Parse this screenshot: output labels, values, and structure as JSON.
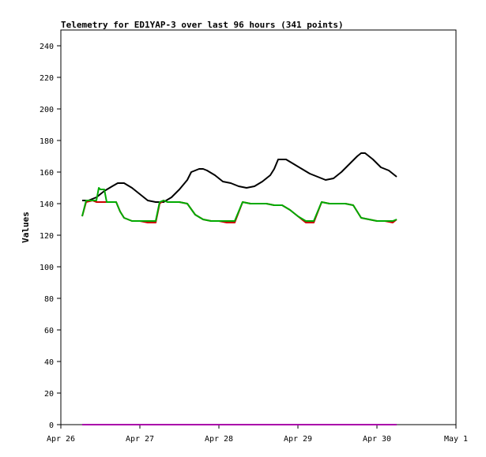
{
  "chart_data": {
    "type": "line",
    "title": "Telemetry for ED1YAP-3 over last 96 hours (341 points)",
    "xlabel": "",
    "ylabel": "Values",
    "ylim": [
      0,
      250
    ],
    "yticks": [
      0,
      20,
      40,
      60,
      80,
      100,
      120,
      140,
      160,
      180,
      200,
      220,
      240
    ],
    "xlim": [
      0,
      5
    ],
    "xticks": [
      {
        "v": 0,
        "label": "Apr 26"
      },
      {
        "v": 1,
        "label": "Apr 27"
      },
      {
        "v": 2,
        "label": "Apr 28"
      },
      {
        "v": 3,
        "label": "Apr 29"
      },
      {
        "v": 4,
        "label": "Apr 30"
      },
      {
        "v": 5,
        "label": "May 1"
      }
    ],
    "grid": false,
    "series": [
      {
        "color": "#000000",
        "x": [
          0.27,
          0.35,
          0.45,
          0.55,
          0.65,
          0.72,
          0.8,
          0.9,
          1.0,
          1.1,
          1.2,
          1.3,
          1.4,
          1.5,
          1.6,
          1.65,
          1.75,
          1.8,
          1.85,
          1.95,
          2.05,
          2.15,
          2.25,
          2.35,
          2.45,
          2.55,
          2.65,
          2.7,
          2.75,
          2.85,
          2.95,
          3.05,
          3.15,
          3.25,
          3.35,
          3.45,
          3.55,
          3.65,
          3.75,
          3.8,
          3.85,
          3.95,
          4.05,
          4.15,
          4.25
        ],
        "y": [
          142,
          142,
          144,
          148,
          151,
          153,
          153,
          150,
          146,
          142,
          141,
          141,
          144,
          149,
          155,
          160,
          162,
          162,
          161,
          158,
          154,
          153,
          151,
          150,
          151,
          154,
          158,
          162,
          168,
          168,
          165,
          162,
          159,
          157,
          155,
          156,
          160,
          165,
          170,
          172,
          172,
          168,
          163,
          161,
          157
        ]
      },
      {
        "color": "#cc0000",
        "x": [
          0.27,
          0.32,
          0.4,
          0.45,
          0.5,
          0.55,
          0.6,
          0.65,
          0.7,
          0.75,
          0.8,
          0.85,
          0.9,
          1.0,
          1.1,
          1.2,
          1.25,
          1.3,
          1.35,
          1.4,
          1.5,
          1.6,
          1.7,
          1.8,
          1.9,
          2.0,
          2.1,
          2.2,
          2.3,
          2.4,
          2.5,
          2.6,
          2.7,
          2.8,
          2.9,
          3.0,
          3.1,
          3.2,
          3.3,
          3.4,
          3.5,
          3.6,
          3.7,
          3.8,
          3.9,
          4.0,
          4.1,
          4.2,
          4.25
        ],
        "y": [
          132,
          141,
          142,
          141,
          141,
          141,
          141,
          141,
          141,
          135,
          131,
          130,
          129,
          129,
          128,
          128,
          140,
          142,
          141,
          141,
          141,
          140,
          133,
          130,
          129,
          129,
          128,
          128,
          141,
          140,
          140,
          140,
          139,
          139,
          136,
          132,
          128,
          128,
          141,
          140,
          140,
          140,
          139,
          131,
          130,
          129,
          129,
          128,
          130
        ]
      },
      {
        "color": "#00aa00",
        "x": [
          0.27,
          0.32,
          0.4,
          0.45,
          0.48,
          0.5,
          0.55,
          0.58,
          0.6,
          0.65,
          0.7,
          0.75,
          0.8,
          0.85,
          0.9,
          1.0,
          1.1,
          1.2,
          1.25,
          1.3,
          1.35,
          1.4,
          1.5,
          1.6,
          1.7,
          1.8,
          1.9,
          2.0,
          2.1,
          2.2,
          2.3,
          2.4,
          2.5,
          2.6,
          2.7,
          2.8,
          2.9,
          3.0,
          3.1,
          3.2,
          3.3,
          3.4,
          3.5,
          3.6,
          3.7,
          3.8,
          3.9,
          4.0,
          4.1,
          4.2,
          4.25
        ],
        "y": [
          132,
          142,
          142,
          142,
          150,
          149,
          149,
          141,
          141,
          141,
          141,
          135,
          131,
          130,
          129,
          129,
          129,
          129,
          141,
          142,
          141,
          141,
          141,
          140,
          133,
          130,
          129,
          129,
          129,
          129,
          141,
          140,
          140,
          140,
          139,
          139,
          136,
          132,
          129,
          129,
          141,
          140,
          140,
          140,
          139,
          131,
          130,
          129,
          129,
          129,
          130
        ]
      },
      {
        "color": "#0000cc",
        "x": [
          0.27,
          4.25
        ],
        "y": [
          0,
          0
        ]
      },
      {
        "color": "#aa00aa",
        "x": [
          0.27,
          4.25
        ],
        "y": [
          0,
          0
        ]
      }
    ]
  }
}
